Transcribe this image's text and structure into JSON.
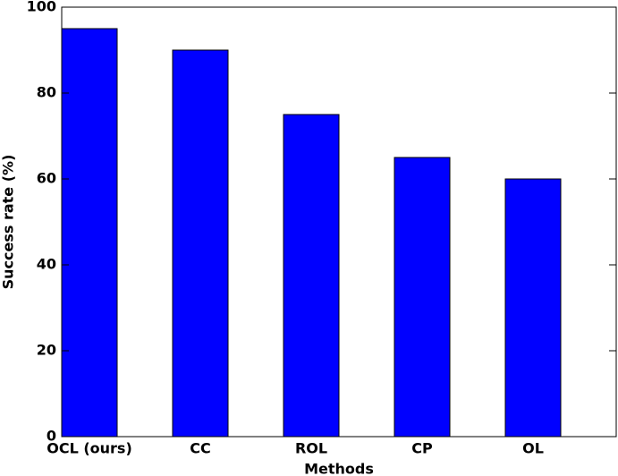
{
  "chart_data": {
    "type": "bar",
    "xlabel": "Methods",
    "ylabel": "Success rate (%)",
    "categories": [
      "OCL (ours)",
      "CC",
      "ROL",
      "CP",
      "OL"
    ],
    "values": [
      95,
      90,
      75,
      65,
      60
    ],
    "color": "#0000ff",
    "ylim": [
      0,
      100
    ],
    "yticks": [
      0,
      20,
      40,
      60,
      80,
      100
    ],
    "grid": false
  }
}
